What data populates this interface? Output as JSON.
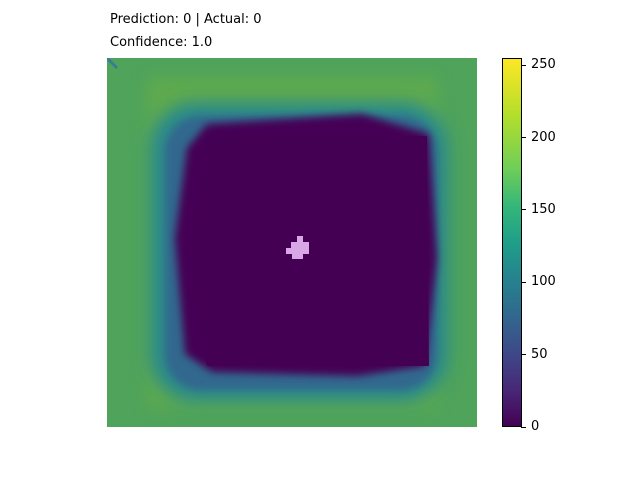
{
  "header": {
    "line1": "Prediction: 0 | Actual: 0",
    "line2": "Confidence: 1.0"
  },
  "chart_data": {
    "type": "heatmap",
    "title": "Prediction: 0 | Actual: 0",
    "subtitle": "Confidence: 1.0",
    "colormap": "viridis",
    "value_range": [
      0,
      255
    ],
    "grid_size": [
      28,
      28
    ],
    "axes_visible": false,
    "colorbar": {
      "ticks": [
        0,
        50,
        100,
        150,
        200,
        250
      ],
      "labels": [
        "0",
        "50",
        "100",
        "150",
        "200",
        "250"
      ],
      "placement": "right"
    },
    "regions": [
      {
        "region": "border",
        "approx_value": 175
      },
      {
        "region": "ring",
        "approx_value": 110
      },
      {
        "region": "center-square",
        "approx_value": 0
      }
    ],
    "highlight": {
      "region": "center",
      "color": "#d9a6e6"
    }
  }
}
